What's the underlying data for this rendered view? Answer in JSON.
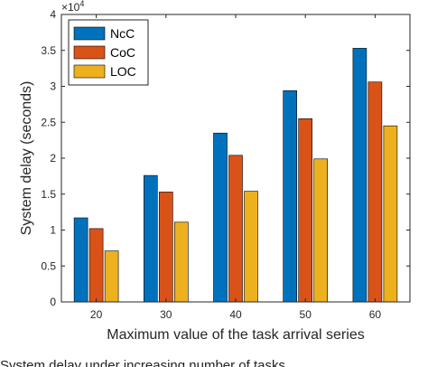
{
  "chart_data": {
    "type": "bar",
    "xlabel": "Maximum value of the task arrival series",
    "ylabel": "System delay (seconds)",
    "y_multiplier_label": "×10",
    "y_multiplier_exp": "4",
    "categories": [
      "20",
      "30",
      "40",
      "50",
      "60"
    ],
    "ylim": [
      0,
      4
    ],
    "yticks": [
      "0",
      "0.5",
      "1",
      "1.5",
      "2",
      "2.5",
      "3",
      "3.5",
      "4"
    ],
    "grid": false,
    "legend_position": "top-left",
    "series": [
      {
        "name": "NcC",
        "color": "#0072BD",
        "values": [
          1.17,
          1.76,
          2.35,
          2.94,
          3.53
        ]
      },
      {
        "name": "CoC",
        "color": "#D95319",
        "values": [
          1.02,
          1.53,
          2.04,
          2.55,
          3.06
        ]
      },
      {
        "name": "LOC",
        "color": "#EDB120",
        "values": [
          0.71,
          1.11,
          1.54,
          1.99,
          2.45
        ]
      }
    ]
  },
  "caption": "System delay under increasing number of tasks"
}
